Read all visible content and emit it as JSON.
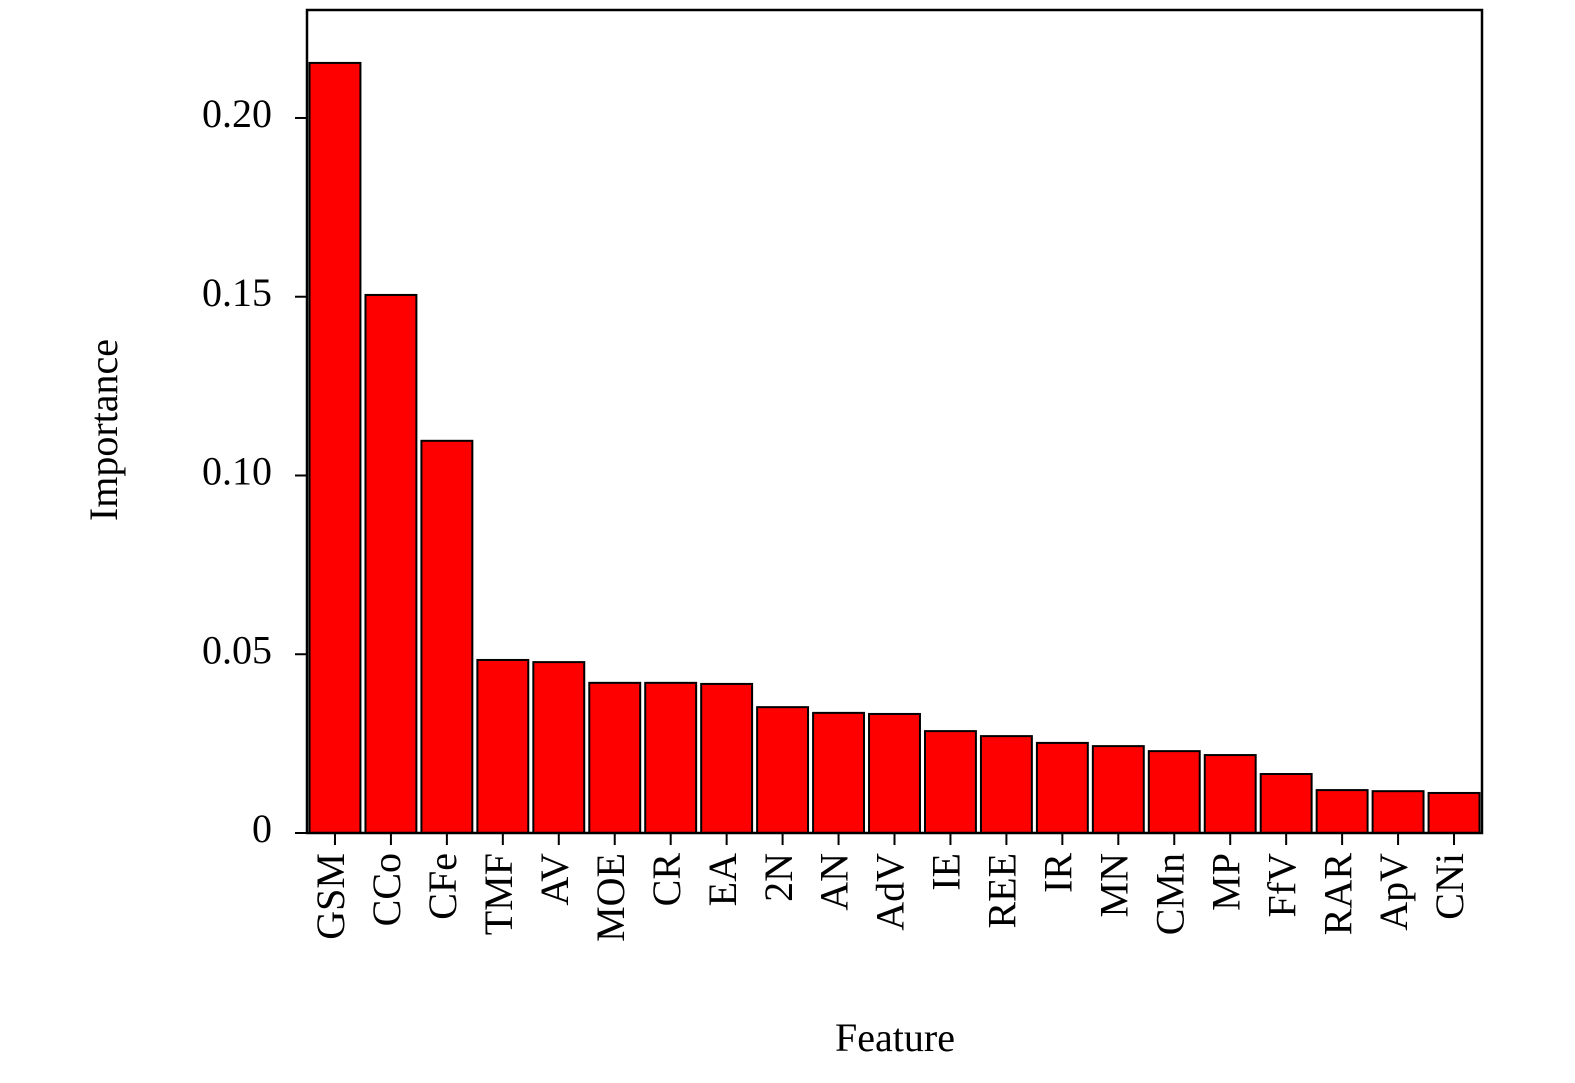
{
  "chart_data": {
    "type": "bar",
    "x_label": "Feature",
    "y_label": "Importance",
    "categories": [
      "GSM",
      "CCo",
      "CFe",
      "TMF",
      "AV",
      "MOE",
      "CR",
      "EA",
      "2N",
      "AN",
      "AdV",
      "IE",
      "REE",
      "IR",
      "MN",
      "CMn",
      "MP",
      "FfV",
      "RAR",
      "ApV",
      "CNi"
    ],
    "values": [
      0.2154,
      0.1505,
      0.1097,
      0.0484,
      0.0478,
      0.042,
      0.042,
      0.0417,
      0.0352,
      0.0336,
      0.0333,
      0.0285,
      0.0271,
      0.0252,
      0.0243,
      0.0229,
      0.0218,
      0.0165,
      0.012,
      0.0117,
      0.0112
    ],
    "color": "#ff0000",
    "ylim": [
      0,
      0.2302
    ],
    "yticks": [
      0,
      0.05,
      {
        "value": 0.1,
        "label": "0.10"
      },
      0.15,
      {
        "value": 0.2,
        "label": "0.20"
      }
    ]
  }
}
